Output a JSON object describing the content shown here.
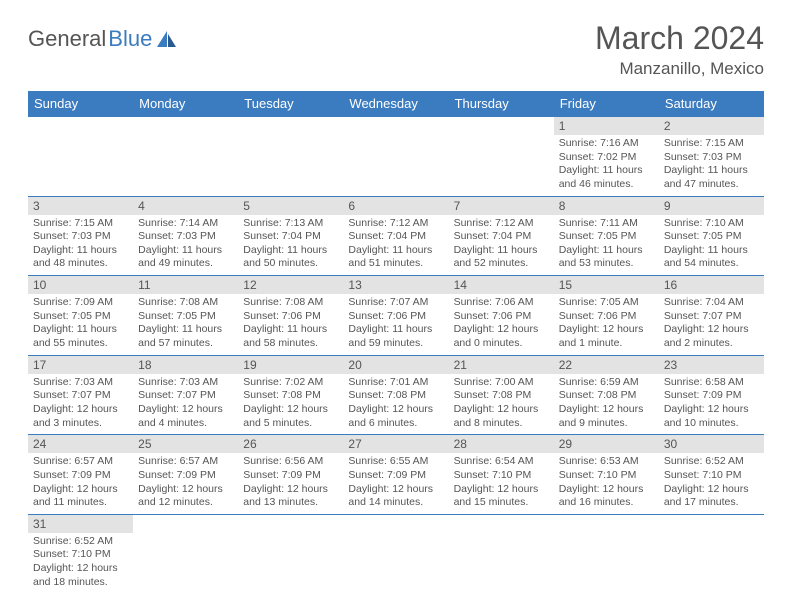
{
  "logo": {
    "text1": "General",
    "text2": "Blue"
  },
  "title": "March 2024",
  "location": "Manzanillo, Mexico",
  "colors": {
    "header_bg": "#3b7bbf",
    "daynum_bg": "#e3e3e3",
    "border": "#3b7bbf",
    "text": "#555"
  },
  "weekdays": [
    "Sunday",
    "Monday",
    "Tuesday",
    "Wednesday",
    "Thursday",
    "Friday",
    "Saturday"
  ],
  "weeks": [
    [
      null,
      null,
      null,
      null,
      null,
      {
        "n": "1",
        "sr": "7:16 AM",
        "ss": "7:02 PM",
        "dl": "11 hours and 46 minutes."
      },
      {
        "n": "2",
        "sr": "7:15 AM",
        "ss": "7:03 PM",
        "dl": "11 hours and 47 minutes."
      }
    ],
    [
      {
        "n": "3",
        "sr": "7:15 AM",
        "ss": "7:03 PM",
        "dl": "11 hours and 48 minutes."
      },
      {
        "n": "4",
        "sr": "7:14 AM",
        "ss": "7:03 PM",
        "dl": "11 hours and 49 minutes."
      },
      {
        "n": "5",
        "sr": "7:13 AM",
        "ss": "7:04 PM",
        "dl": "11 hours and 50 minutes."
      },
      {
        "n": "6",
        "sr": "7:12 AM",
        "ss": "7:04 PM",
        "dl": "11 hours and 51 minutes."
      },
      {
        "n": "7",
        "sr": "7:12 AM",
        "ss": "7:04 PM",
        "dl": "11 hours and 52 minutes."
      },
      {
        "n": "8",
        "sr": "7:11 AM",
        "ss": "7:05 PM",
        "dl": "11 hours and 53 minutes."
      },
      {
        "n": "9",
        "sr": "7:10 AM",
        "ss": "7:05 PM",
        "dl": "11 hours and 54 minutes."
      }
    ],
    [
      {
        "n": "10",
        "sr": "7:09 AM",
        "ss": "7:05 PM",
        "dl": "11 hours and 55 minutes."
      },
      {
        "n": "11",
        "sr": "7:08 AM",
        "ss": "7:05 PM",
        "dl": "11 hours and 57 minutes."
      },
      {
        "n": "12",
        "sr": "7:08 AM",
        "ss": "7:06 PM",
        "dl": "11 hours and 58 minutes."
      },
      {
        "n": "13",
        "sr": "7:07 AM",
        "ss": "7:06 PM",
        "dl": "11 hours and 59 minutes."
      },
      {
        "n": "14",
        "sr": "7:06 AM",
        "ss": "7:06 PM",
        "dl": "12 hours and 0 minutes."
      },
      {
        "n": "15",
        "sr": "7:05 AM",
        "ss": "7:06 PM",
        "dl": "12 hours and 1 minute."
      },
      {
        "n": "16",
        "sr": "7:04 AM",
        "ss": "7:07 PM",
        "dl": "12 hours and 2 minutes."
      }
    ],
    [
      {
        "n": "17",
        "sr": "7:03 AM",
        "ss": "7:07 PM",
        "dl": "12 hours and 3 minutes."
      },
      {
        "n": "18",
        "sr": "7:03 AM",
        "ss": "7:07 PM",
        "dl": "12 hours and 4 minutes."
      },
      {
        "n": "19",
        "sr": "7:02 AM",
        "ss": "7:08 PM",
        "dl": "12 hours and 5 minutes."
      },
      {
        "n": "20",
        "sr": "7:01 AM",
        "ss": "7:08 PM",
        "dl": "12 hours and 6 minutes."
      },
      {
        "n": "21",
        "sr": "7:00 AM",
        "ss": "7:08 PM",
        "dl": "12 hours and 8 minutes."
      },
      {
        "n": "22",
        "sr": "6:59 AM",
        "ss": "7:08 PM",
        "dl": "12 hours and 9 minutes."
      },
      {
        "n": "23",
        "sr": "6:58 AM",
        "ss": "7:09 PM",
        "dl": "12 hours and 10 minutes."
      }
    ],
    [
      {
        "n": "24",
        "sr": "6:57 AM",
        "ss": "7:09 PM",
        "dl": "12 hours and 11 minutes."
      },
      {
        "n": "25",
        "sr": "6:57 AM",
        "ss": "7:09 PM",
        "dl": "12 hours and 12 minutes."
      },
      {
        "n": "26",
        "sr": "6:56 AM",
        "ss": "7:09 PM",
        "dl": "12 hours and 13 minutes."
      },
      {
        "n": "27",
        "sr": "6:55 AM",
        "ss": "7:09 PM",
        "dl": "12 hours and 14 minutes."
      },
      {
        "n": "28",
        "sr": "6:54 AM",
        "ss": "7:10 PM",
        "dl": "12 hours and 15 minutes."
      },
      {
        "n": "29",
        "sr": "6:53 AM",
        "ss": "7:10 PM",
        "dl": "12 hours and 16 minutes."
      },
      {
        "n": "30",
        "sr": "6:52 AM",
        "ss": "7:10 PM",
        "dl": "12 hours and 17 minutes."
      }
    ],
    [
      {
        "n": "31",
        "sr": "6:52 AM",
        "ss": "7:10 PM",
        "dl": "12 hours and 18 minutes."
      },
      null,
      null,
      null,
      null,
      null,
      null
    ]
  ],
  "labels": {
    "sunrise": "Sunrise: ",
    "sunset": "Sunset: ",
    "daylight": "Daylight: "
  }
}
